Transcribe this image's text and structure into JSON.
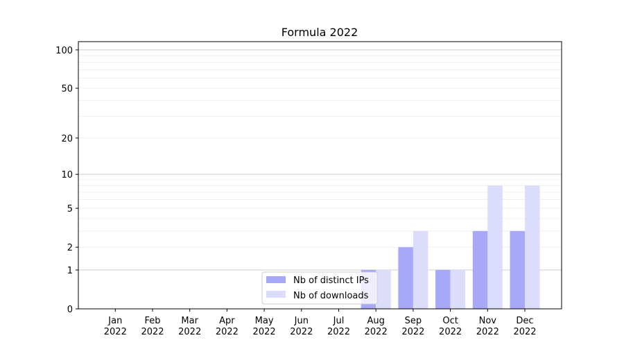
{
  "chart_data": {
    "type": "bar",
    "title": "Formula 2022",
    "xlabel": "",
    "ylabel": "",
    "yscale": "log10(1+y)",
    "ylim": [
      0,
      116
    ],
    "grid": true,
    "legend_placement": "lower-center",
    "categories": [
      "Jan\n2022",
      "Feb\n2022",
      "Mar\n2022",
      "Apr\n2022",
      "May\n2022",
      "Jun\n2022",
      "Jul\n2022",
      "Aug\n2022",
      "Sep\n2022",
      "Oct\n2022",
      "Nov\n2022",
      "Dec\n2022"
    ],
    "yticks": [
      0,
      1,
      2,
      5,
      10,
      20,
      50,
      100
    ],
    "series": [
      {
        "name": "Nb of distinct IPs",
        "color": "#a8a8f8",
        "values": [
          0,
          0,
          0,
          0,
          0,
          0,
          0,
          1,
          2,
          1,
          3,
          3
        ]
      },
      {
        "name": "Nb of downloads",
        "color": "#dcdcfb",
        "values": [
          0,
          0,
          0,
          0,
          0,
          0,
          0,
          1,
          3,
          1,
          8,
          8
        ]
      }
    ]
  }
}
